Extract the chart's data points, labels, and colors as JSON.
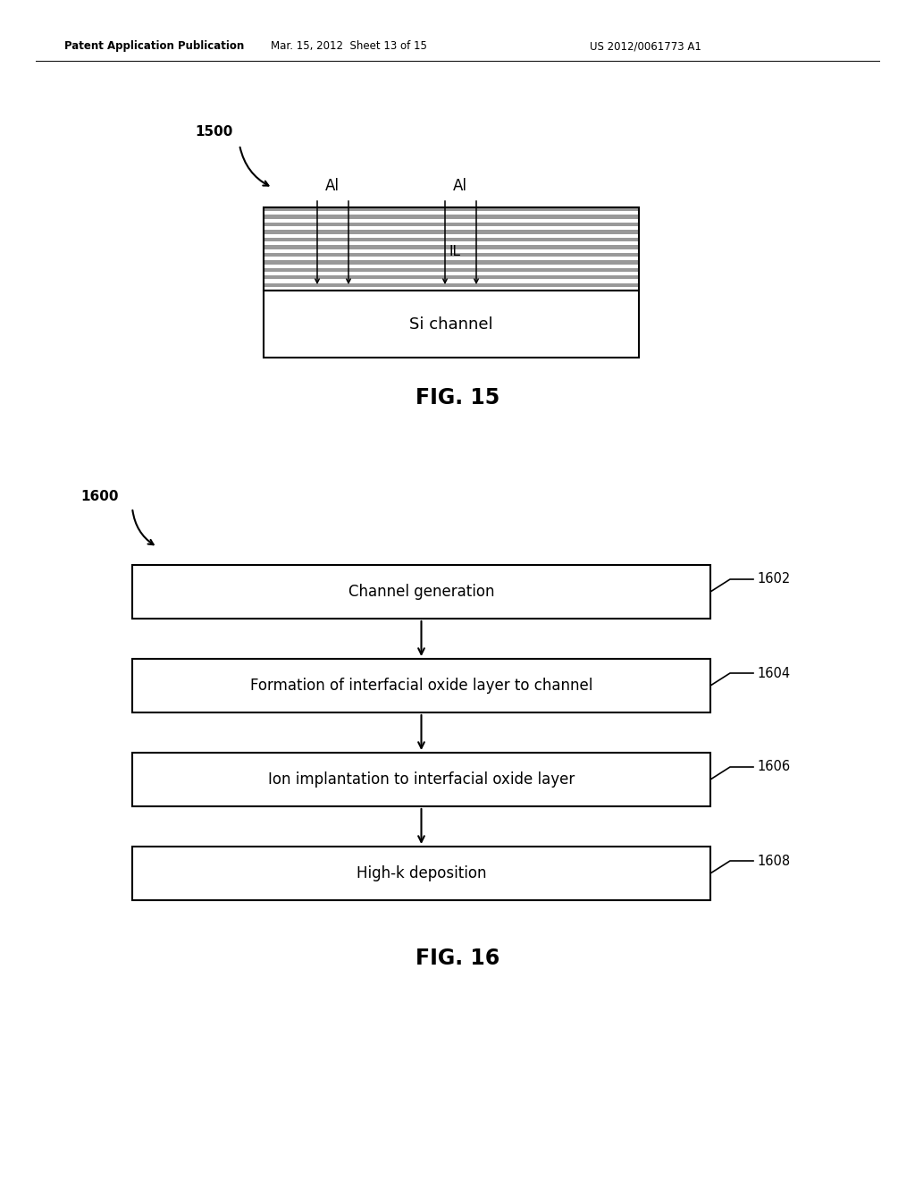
{
  "bg_color": "#ffffff",
  "header_text": "Patent Application Publication",
  "header_date": "Mar. 15, 2012  Sheet 13 of 15",
  "header_patent": "US 2012/0061773 A1",
  "fig15_label": "1500",
  "fig15_caption": "FIG. 15",
  "fig16_label": "1600",
  "fig16_caption": "FIG. 16",
  "il_label": "IL",
  "si_channel_label": "Si channel",
  "flow_boxes": [
    {
      "label": "1602",
      "text": "Channel generation"
    },
    {
      "label": "1604",
      "text": "Formation of interfacial oxide layer to channel"
    },
    {
      "label": "1606",
      "text": "Ion implantation to interfacial oxide layer"
    },
    {
      "label": "1608",
      "text": "High-k deposition"
    }
  ],
  "text_color": "#000000"
}
